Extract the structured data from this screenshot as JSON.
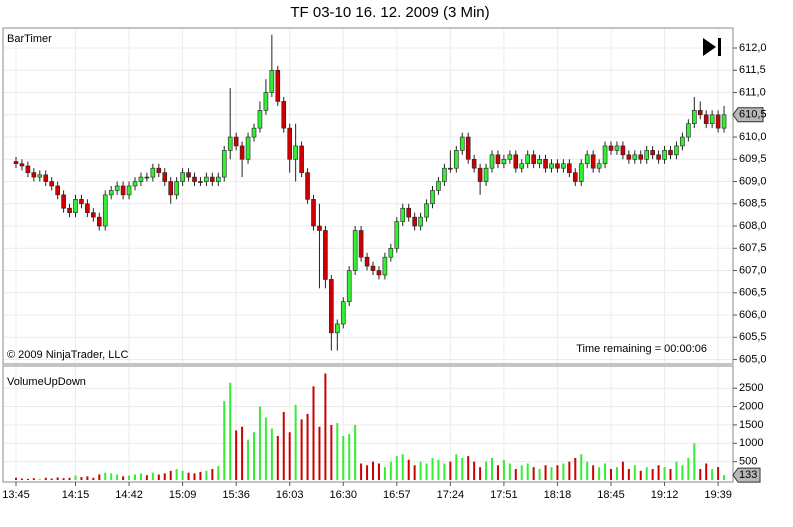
{
  "chart_data": [
    {
      "type": "candlestick",
      "title": "TF 03-10  16. 12. 2009 (3 Min)",
      "indicator_label": "BarTimer",
      "copyright": "© 2009 NinjaTrader, LLC",
      "timer_text": "Time remaining = 00:00:06",
      "open": [
        609.45,
        609.4,
        609.35,
        609.2,
        609.1,
        609.15,
        609.0,
        608.9,
        608.7,
        608.4,
        608.3,
        608.6,
        608.5,
        608.3,
        608.2,
        608.0,
        608.7,
        608.8,
        608.9,
        608.7,
        608.9,
        609.0,
        609.1,
        609.1,
        609.3,
        609.2,
        609.0,
        608.7,
        609.0,
        609.2,
        609.1,
        609.0,
        609.0,
        609.1,
        609.0,
        609.1,
        609.7,
        610.0,
        609.8,
        609.5,
        610.0,
        610.2,
        610.6,
        611.0,
        611.5,
        610.8,
        610.2,
        609.5,
        609.8,
        609.2,
        608.6,
        608.0,
        607.9,
        606.8,
        605.6,
        605.8,
        606.3,
        607.0,
        607.9,
        607.3,
        607.1,
        607.0,
        606.9,
        607.3,
        607.5,
        608.1,
        608.4,
        608.2,
        608.0,
        608.2,
        608.5,
        608.8,
        609.0,
        609.3,
        609.3,
        609.7,
        610.0,
        609.5,
        609.3,
        609.0,
        609.3,
        609.6,
        609.4,
        609.5,
        609.6,
        609.3,
        609.4,
        609.6,
        609.4,
        609.5,
        609.3,
        609.4,
        609.3,
        609.4,
        609.2,
        609.0,
        609.4,
        609.6,
        609.3,
        609.4,
        609.8,
        609.7,
        609.8,
        609.6,
        609.5,
        609.6,
        609.5,
        609.7,
        609.6,
        609.5,
        609.7,
        609.6,
        609.8,
        610.0,
        610.3,
        610.6,
        610.5,
        610.3,
        610.5,
        610.2
      ],
      "high": [
        609.55,
        609.5,
        609.45,
        609.3,
        609.25,
        609.25,
        609.1,
        609.0,
        608.8,
        608.5,
        608.7,
        608.7,
        608.6,
        608.4,
        608.3,
        608.8,
        608.9,
        609.0,
        609.0,
        609.0,
        609.1,
        609.2,
        609.2,
        609.4,
        609.4,
        609.3,
        609.1,
        609.1,
        609.3,
        609.3,
        609.2,
        609.1,
        609.2,
        609.2,
        609.2,
        609.8,
        611.1,
        610.1,
        609.9,
        610.1,
        610.3,
        610.8,
        611.3,
        612.3,
        611.6,
        610.9,
        610.3,
        610.3,
        609.9,
        609.3,
        608.7,
        608.5,
        608.0,
        606.9,
        605.9,
        606.4,
        607.1,
        608.0,
        608.0,
        607.4,
        607.2,
        607.1,
        607.4,
        607.6,
        608.2,
        608.5,
        608.5,
        608.3,
        608.3,
        608.6,
        608.9,
        609.1,
        609.4,
        609.7,
        609.8,
        610.1,
        610.1,
        609.6,
        609.4,
        609.4,
        609.7,
        609.7,
        609.6,
        609.7,
        609.7,
        609.5,
        609.7,
        609.7,
        609.6,
        609.6,
        609.5,
        609.5,
        609.5,
        609.5,
        609.3,
        609.5,
        609.7,
        609.7,
        609.5,
        609.9,
        609.9,
        609.9,
        609.9,
        609.7,
        609.7,
        609.7,
        609.8,
        609.8,
        609.7,
        609.8,
        609.8,
        609.9,
        610.1,
        610.4,
        610.9,
        610.8,
        610.6,
        610.6,
        610.6,
        610.7
      ],
      "low": [
        609.3,
        609.25,
        609.1,
        609.0,
        609.0,
        608.9,
        608.8,
        608.6,
        608.3,
        608.2,
        608.2,
        608.4,
        608.2,
        608.1,
        607.9,
        607.9,
        608.6,
        608.7,
        608.6,
        608.6,
        608.8,
        608.9,
        609.0,
        609.0,
        609.1,
        608.9,
        608.5,
        608.6,
        608.9,
        609.0,
        608.9,
        608.9,
        608.9,
        608.9,
        608.9,
        609.0,
        609.5,
        609.7,
        609.1,
        609.4,
        609.9,
        610.1,
        610.5,
        610.9,
        610.7,
        610.1,
        609.2,
        609.0,
        609.1,
        608.5,
        607.9,
        606.6,
        606.6,
        605.2,
        605.2,
        605.7,
        606.2,
        606.9,
        607.2,
        607.0,
        606.9,
        606.8,
        606.8,
        607.2,
        607.4,
        608.0,
        608.1,
        607.9,
        607.9,
        608.1,
        608.4,
        608.7,
        608.9,
        609.2,
        609.2,
        609.6,
        609.4,
        609.2,
        608.7,
        608.9,
        609.2,
        609.3,
        609.3,
        609.4,
        609.2,
        609.2,
        609.3,
        609.3,
        609.3,
        609.2,
        609.2,
        609.2,
        609.2,
        609.1,
        608.9,
        608.9,
        609.3,
        609.2,
        609.2,
        609.3,
        609.6,
        609.6,
        609.5,
        609.4,
        609.4,
        609.4,
        609.4,
        609.5,
        609.4,
        609.4,
        609.5,
        609.5,
        609.7,
        609.9,
        610.2,
        610.4,
        610.2,
        610.2,
        610.1,
        610.1
      ],
      "close": [
        609.4,
        609.35,
        609.2,
        609.1,
        609.15,
        609.0,
        608.9,
        608.7,
        608.4,
        608.3,
        608.6,
        608.5,
        608.3,
        608.2,
        608.0,
        608.7,
        608.8,
        608.9,
        608.7,
        608.9,
        609.0,
        609.1,
        609.1,
        609.3,
        609.2,
        609.0,
        608.7,
        609.0,
        609.2,
        609.1,
        609.0,
        609.0,
        609.1,
        609.0,
        609.1,
        609.7,
        610.0,
        609.8,
        609.5,
        610.0,
        610.2,
        610.6,
        611.0,
        611.5,
        610.8,
        610.2,
        609.5,
        609.8,
        609.2,
        608.6,
        608.0,
        607.9,
        606.8,
        605.6,
        605.8,
        606.3,
        607.0,
        607.9,
        607.3,
        607.1,
        607.0,
        606.9,
        607.3,
        607.5,
        608.1,
        608.4,
        608.2,
        608.0,
        608.2,
        608.5,
        608.8,
        609.0,
        609.3,
        609.3,
        609.7,
        610.0,
        609.5,
        609.3,
        609.0,
        609.3,
        609.6,
        609.4,
        609.5,
        609.6,
        609.3,
        609.4,
        609.6,
        609.4,
        609.5,
        609.3,
        609.4,
        609.3,
        609.4,
        609.2,
        609.0,
        609.4,
        609.6,
        609.3,
        609.4,
        609.8,
        609.7,
        609.8,
        609.6,
        609.5,
        609.6,
        609.5,
        609.7,
        609.6,
        609.5,
        609.7,
        609.6,
        609.8,
        610.0,
        610.3,
        610.6,
        610.5,
        610.3,
        610.5,
        610.2,
        610.5
      ],
      "up_color": "#33ee33",
      "down_color": "#cc0000",
      "outline_color": "#222222",
      "ylim": [
        604.9,
        612.45
      ],
      "yticks": [
        {
          "value": 605.0,
          "label": "605,0"
        },
        {
          "value": 605.5,
          "label": "605,5"
        },
        {
          "value": 606.0,
          "label": "606,0"
        },
        {
          "value": 606.5,
          "label": "606,5"
        },
        {
          "value": 607.0,
          "label": "607,0"
        },
        {
          "value": 607.5,
          "label": "607,5"
        },
        {
          "value": 608.0,
          "label": "608,0"
        },
        {
          "value": 608.5,
          "label": "608,5"
        },
        {
          "value": 609.0,
          "label": "609,0"
        },
        {
          "value": 609.5,
          "label": "609,5"
        },
        {
          "value": 610.0,
          "label": "610,0"
        },
        {
          "value": 610.5,
          "label": "610,5"
        },
        {
          "value": 611.0,
          "label": "611,0"
        },
        {
          "value": 611.5,
          "label": "611,5"
        },
        {
          "value": 612.0,
          "label": "612,0"
        }
      ],
      "last_price": {
        "value": 610.5,
        "label": "610,5"
      },
      "grid": true
    },
    {
      "type": "bar",
      "title": "VolumeUpDown",
      "categories": [
        "13:45",
        null,
        null,
        null,
        null,
        null,
        null,
        null,
        null,
        null,
        "14:15",
        null,
        null,
        null,
        null,
        null,
        null,
        null,
        null,
        "14:42",
        null,
        null,
        null,
        null,
        null,
        null,
        null,
        null,
        "15:09",
        null,
        null,
        null,
        null,
        null,
        null,
        null,
        null,
        "15:36",
        null,
        null,
        null,
        null,
        null,
        null,
        null,
        null,
        "16:03",
        null,
        null,
        null,
        null,
        null,
        null,
        null,
        null,
        "16:30",
        null,
        null,
        null,
        null,
        null,
        null,
        null,
        null,
        "16:57",
        null,
        null,
        null,
        null,
        null,
        null,
        null,
        null,
        "17:24",
        null,
        null,
        null,
        null,
        null,
        null,
        null,
        null,
        "17:51",
        null,
        null,
        null,
        null,
        null,
        null,
        null,
        null,
        "18:18",
        null,
        null,
        null,
        null,
        null,
        null,
        null,
        null,
        "18:45",
        null,
        null,
        null,
        null,
        null,
        null,
        null,
        null,
        "19:12",
        null,
        null,
        null,
        null,
        null,
        null,
        null,
        null,
        "19:39",
        null
      ],
      "values": [
        60,
        40,
        30,
        50,
        30,
        60,
        40,
        70,
        50,
        60,
        120,
        80,
        100,
        60,
        150,
        200,
        180,
        150,
        100,
        120,
        150,
        180,
        130,
        200,
        150,
        180,
        250,
        300,
        250,
        200,
        180,
        220,
        250,
        300,
        380,
        2150,
        2650,
        1350,
        1450,
        1100,
        1300,
        2000,
        1700,
        1400,
        1200,
        1850,
        1300,
        2050,
        1650,
        1800,
        2550,
        1450,
        2900,
        1500,
        1550,
        1200,
        1250,
        1500,
        450,
        400,
        500,
        450,
        350,
        500,
        650,
        700,
        550,
        400,
        500,
        450,
        600,
        550,
        450,
        500,
        700,
        600,
        650,
        500,
        350,
        500,
        600,
        400,
        550,
        450,
        300,
        400,
        450,
        350,
        300,
        400,
        350,
        400,
        450,
        500,
        600,
        700,
        500,
        400,
        350,
        450,
        300,
        350,
        500,
        300,
        400,
        250,
        350,
        300,
        400,
        350,
        300,
        500,
        400,
        600,
        1000,
        300,
        450,
        300,
        350,
        133
      ],
      "ylim": [
        0,
        3050
      ],
      "yticks": [
        500,
        1000,
        1500,
        2000,
        2500
      ],
      "grid": true
    }
  ]
}
